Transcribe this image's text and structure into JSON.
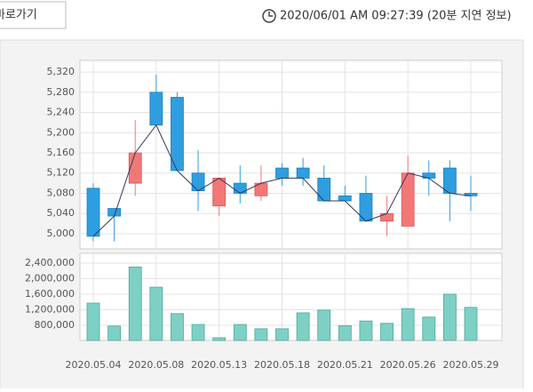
{
  "button": "바로가기",
  "timestamp": "2020/06/01 AM 09:27:39 (20분 지연 정보)",
  "chart_data": {
    "type": "candlestick",
    "categories": [
      "2020.05.04",
      null,
      null,
      "2020.05.08",
      null,
      null,
      "2020.05.13",
      null,
      null,
      "2020.05.18",
      null,
      null,
      "2020.05.21",
      null,
      null,
      "2020.05.26",
      null,
      null,
      "2020.05.29"
    ],
    "open": [
      5090,
      5050,
      5100,
      5280,
      5270,
      5120,
      5055,
      5100,
      5075,
      5130,
      5130,
      5110,
      5075,
      5080,
      5025,
      5015,
      5120,
      5130,
      5080
    ],
    "high": [
      5100,
      5050,
      5225,
      5315,
      5280,
      5165,
      5110,
      5135,
      5135,
      5140,
      5150,
      5135,
      5095,
      5115,
      5075,
      5155,
      5145,
      5145,
      5115
    ],
    "low": [
      4985,
      4985,
      5075,
      5215,
      5125,
      5045,
      5035,
      5060,
      5065,
      5095,
      5095,
      5065,
      5065,
      5025,
      4995,
      5015,
      5075,
      5025,
      5045
    ],
    "close": [
      4995,
      5035,
      5160,
      5215,
      5125,
      5085,
      5110,
      5080,
      5100,
      5110,
      5110,
      5065,
      5065,
      5025,
      5040,
      5120,
      5110,
      5080,
      5075
    ],
    "up_color": "#f27878",
    "down_color": "#2e9ee0",
    "line_color": "#333a5a",
    "ylim": [
      4970,
      5343
    ],
    "yticks": [
      {
        "value": 5000,
        "label": "5,000"
      },
      {
        "value": 5040,
        "label": "5,040"
      },
      {
        "value": 5080,
        "label": "5,080"
      },
      {
        "value": 5120,
        "label": "5,120"
      },
      {
        "value": 5160,
        "label": "5,160"
      },
      {
        "value": 5200,
        "label": "5,200"
      },
      {
        "value": 5240,
        "label": "5,240"
      },
      {
        "value": 5280,
        "label": "5,280"
      },
      {
        "value": 5320,
        "label": "5,320"
      }
    ],
    "grid": true,
    "volume": {
      "color": "#7fd0c4",
      "values": [
        1370000,
        780000,
        2300000,
        1780000,
        1100000,
        820000,
        480000,
        820000,
        710000,
        710000,
        1120000,
        1190000,
        790000,
        910000,
        850000,
        1230000,
        1010000,
        1600000,
        1260000
      ],
      "ylim": [
        410000,
        2650000
      ],
      "yticks": [
        {
          "value": 800000,
          "label": "800,000"
        },
        {
          "value": 1200000,
          "label": "1,200,000"
        },
        {
          "value": 1600000,
          "label": "1,600,000"
        },
        {
          "value": 2000000,
          "label": "2,000,000"
        },
        {
          "value": 2400000,
          "label": "2,400,000"
        }
      ]
    }
  }
}
